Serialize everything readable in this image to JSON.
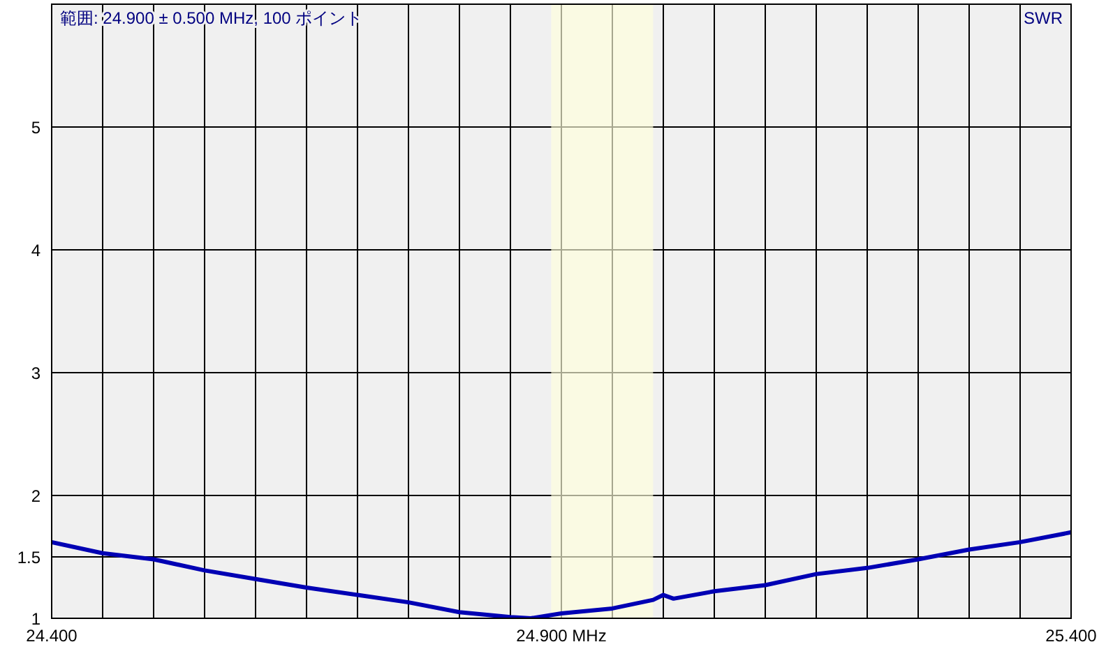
{
  "chart_data": {
    "type": "line",
    "ylabel": "SWR",
    "annotations": [
      "範囲: 24.900 ± 0.500 MHz, 100 ポイント"
    ],
    "x": [
      24.4,
      24.45,
      24.5,
      24.55,
      24.6,
      24.65,
      24.7,
      24.75,
      24.8,
      24.85,
      24.87,
      24.9,
      24.95,
      24.99,
      25.0,
      25.01,
      25.05,
      25.1,
      25.15,
      25.2,
      25.25,
      25.3,
      25.35,
      25.4
    ],
    "series": [
      {
        "color": "#0000b4",
        "values": [
          1.62,
          1.53,
          1.48,
          1.39,
          1.32,
          1.25,
          1.19,
          1.13,
          1.05,
          1.01,
          1.0,
          1.04,
          1.08,
          1.15,
          1.19,
          1.16,
          1.22,
          1.27,
          1.36,
          1.41,
          1.48,
          1.56,
          1.62,
          1.7
        ]
      }
    ],
    "xlim": [
      24.4,
      25.4
    ],
    "xticks": [
      {
        "value": 24.4,
        "label": "24.400"
      },
      {
        "value": 24.45,
        "label": null
      },
      {
        "value": 24.5,
        "label": null
      },
      {
        "value": 24.55,
        "label": null
      },
      {
        "value": 24.6,
        "label": null
      },
      {
        "value": 24.65,
        "label": null
      },
      {
        "value": 24.7,
        "label": null
      },
      {
        "value": 24.75,
        "label": null
      },
      {
        "value": 24.8,
        "label": null
      },
      {
        "value": 24.85,
        "label": null
      },
      {
        "value": 24.9,
        "label": "24.900 MHz"
      },
      {
        "value": 24.95,
        "label": null
      },
      {
        "value": 25.0,
        "label": null
      },
      {
        "value": 25.05,
        "label": null
      },
      {
        "value": 25.1,
        "label": null
      },
      {
        "value": 25.15,
        "label": null
      },
      {
        "value": 25.2,
        "label": null
      },
      {
        "value": 25.25,
        "label": null
      },
      {
        "value": 25.3,
        "label": null
      },
      {
        "value": 25.35,
        "label": null
      },
      {
        "value": 25.4,
        "label": "25.400"
      }
    ],
    "ylim": [
      1,
      6
    ],
    "yticks": [
      1,
      1.5,
      2,
      3,
      4,
      5
    ],
    "bands": [
      {
        "axis": "x",
        "from": 24.89,
        "to": 24.99,
        "color": "#ffffdc"
      }
    ],
    "grid": true,
    "marker": "none",
    "line_style": "solid"
  }
}
